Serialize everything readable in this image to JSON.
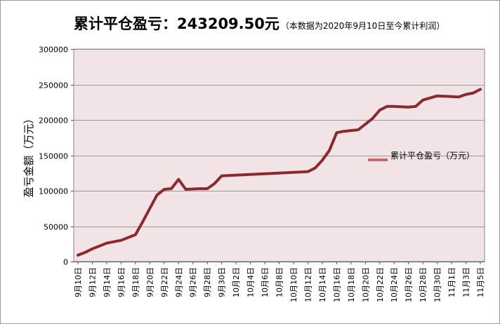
{
  "title": {
    "main": "累计平仓盈亏：243209.50元",
    "note": "（本数据为2020年9月10日至今累计利润）"
  },
  "colors": {
    "plot_background": "#f2e4e6",
    "line": "#8b2a2e",
    "legend_line": "#c9676a",
    "grid": "#999999"
  },
  "chart_data": {
    "type": "line",
    "title": "累计平仓盈亏：243209.50元（本数据为2020年9月10日至今累计利润）",
    "xlabel": "",
    "ylabel": "盈亏金额（万元）",
    "ylim": [
      0,
      300000
    ],
    "yticks": [
      0,
      50000,
      100000,
      150000,
      200000,
      250000,
      300000
    ],
    "grid": true,
    "legend": "right",
    "x_tick_labels": [
      "9月10日",
      "9月12日",
      "9月14日",
      "9月16日",
      "9月18日",
      "9月20日",
      "9月22日",
      "9月24日",
      "9月26日",
      "9月28日",
      "9月30日",
      "10月2日",
      "10月4日",
      "10月6日",
      "10月8日",
      "10月10日",
      "10月12日",
      "10月14日",
      "10月16日",
      "10月18日",
      "10月20日",
      "10月22日",
      "10月24日",
      "10月26日",
      "10月28日",
      "10月30日",
      "11月1日",
      "11月3日",
      "11月5日"
    ],
    "series": [
      {
        "name": "累计平仓盈亏（万元）",
        "x": [
          "9月10日",
          "9月11日",
          "9月12日",
          "9月13日",
          "9月14日",
          "9月15日",
          "9月16日",
          "9月17日",
          "9月18日",
          "9月19日",
          "9月20日",
          "9月21日",
          "9月22日",
          "9月23日",
          "9月24日",
          "9月25日",
          "9月26日",
          "9月27日",
          "9月28日",
          "9月29日",
          "9月30日",
          "10月1日",
          "10月2日",
          "10月3日",
          "10月4日",
          "10月5日",
          "10月6日",
          "10月7日",
          "10月8日",
          "10月9日",
          "10月10日",
          "10月11日",
          "10月12日",
          "10月13日",
          "10月14日",
          "10月15日",
          "10月16日",
          "10月17日",
          "10月18日",
          "10月19日",
          "10月20日",
          "10月21日",
          "10月22日",
          "10月23日",
          "10月24日",
          "10月25日",
          "10月26日",
          "10月27日",
          "10月28日",
          "10月29日",
          "10月30日",
          "10月31日",
          "11月1日",
          "11月2日",
          "11月3日",
          "11月4日",
          "11月5日"
        ],
        "values": [
          9000,
          13000,
          18000,
          22000,
          26000,
          28000,
          30000,
          34000,
          38000,
          56000,
          75000,
          94000,
          102000,
          103000,
          116000,
          102000,
          102500,
          103000,
          103000,
          110000,
          121000,
          121500,
          122000,
          122500,
          123000,
          123500,
          124000,
          124500,
          125000,
          125500,
          126000,
          126500,
          127000,
          132000,
          143000,
          157000,
          182000,
          184000,
          185000,
          186000,
          194000,
          202000,
          214000,
          219000,
          219000,
          218500,
          218000,
          219000,
          228000,
          231000,
          234000,
          233500,
          233000,
          232500,
          236000,
          238000,
          243209.5
        ]
      }
    ]
  }
}
